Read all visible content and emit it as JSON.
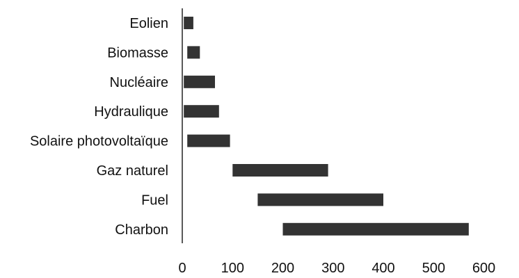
{
  "chart_data": {
    "type": "bar",
    "orientation": "horizontal",
    "bar_style": "floating-range",
    "title": "",
    "xlabel": "",
    "ylabel": "",
    "categories": [
      "Eolien",
      "Biomasse",
      "Nucléaire",
      "Hydraulique",
      "Solaire photovoltaïque",
      "Gaz naturel",
      "Fuel",
      "Charbon"
    ],
    "ranges": [
      [
        3,
        22
      ],
      [
        10,
        35
      ],
      [
        3,
        65
      ],
      [
        3,
        73
      ],
      [
        10,
        95
      ],
      [
        100,
        290
      ],
      [
        150,
        400
      ],
      [
        200,
        570
      ]
    ],
    "xlim": [
      0,
      600
    ],
    "xticks": [
      0,
      100,
      200,
      300,
      400,
      500,
      600
    ],
    "grid": false,
    "legend": "none",
    "colors": {
      "bar": "#333333",
      "axis": "#222222",
      "text": "#111111"
    }
  }
}
